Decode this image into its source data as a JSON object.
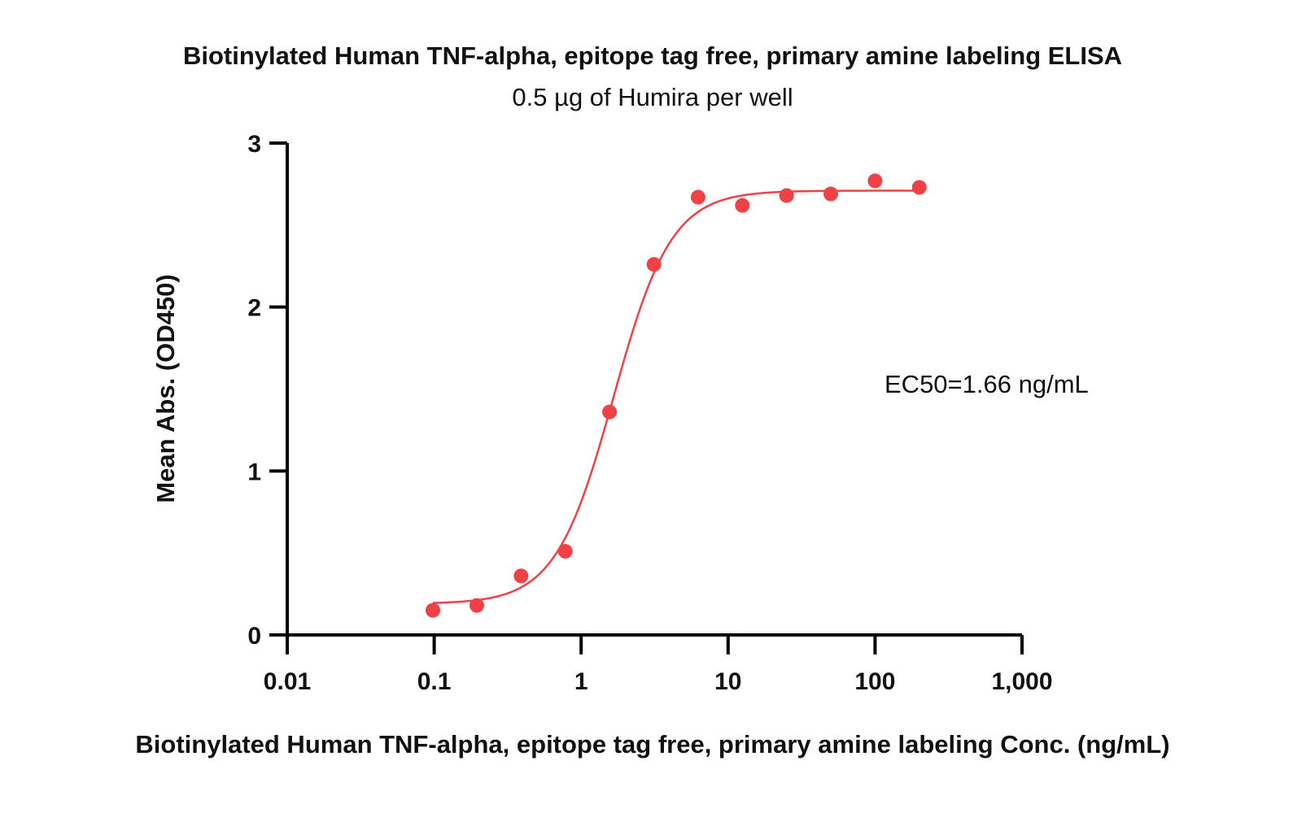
{
  "chart_data": {
    "type": "scatter",
    "title": "Biotinylated Human TNF-alpha, epitope tag free, primary amine labeling ELISA",
    "subtitle": "0.5 µg of Humira per well",
    "xlabel": "Biotinylated Human TNF-alpha, epitope tag free, primary amine labeling Conc. (ng/mL)",
    "ylabel": "Mean Abs. (OD450)",
    "xscale": "log",
    "xlim": [
      0.01,
      1000
    ],
    "ylim": [
      0,
      3
    ],
    "x_ticks": [
      {
        "value": 0.01,
        "label": "0.01"
      },
      {
        "value": 0.1,
        "label": "0.1"
      },
      {
        "value": 1,
        "label": "1"
      },
      {
        "value": 10,
        "label": "10"
      },
      {
        "value": 100,
        "label": "100"
      },
      {
        "value": 1000,
        "label": "1,000"
      }
    ],
    "y_ticks": [
      {
        "value": 0,
        "label": "0"
      },
      {
        "value": 1,
        "label": "1"
      },
      {
        "value": 2,
        "label": "2"
      },
      {
        "value": 3,
        "label": "3"
      }
    ],
    "grid": false,
    "series": [
      {
        "color": "#ef4146",
        "points": [
          {
            "x": 0.098,
            "y": 0.15
          },
          {
            "x": 0.195,
            "y": 0.18
          },
          {
            "x": 0.39,
            "y": 0.36
          },
          {
            "x": 0.78,
            "y": 0.51
          },
          {
            "x": 1.56,
            "y": 1.36
          },
          {
            "x": 3.13,
            "y": 2.26
          },
          {
            "x": 6.25,
            "y": 2.67
          },
          {
            "x": 12.5,
            "y": 2.62
          },
          {
            "x": 25,
            "y": 2.68
          },
          {
            "x": 50,
            "y": 2.69
          },
          {
            "x": 100,
            "y": 2.77
          },
          {
            "x": 200,
            "y": 2.73
          }
        ],
        "fit": {
          "model": "4PL",
          "bottom": 0.19,
          "top": 2.71,
          "ec50": 1.66,
          "hill": 2.2,
          "x_range": [
            0.098,
            200
          ]
        }
      }
    ],
    "annotations": [
      {
        "text": "EC50=1.66 ng/mL"
      }
    ]
  }
}
